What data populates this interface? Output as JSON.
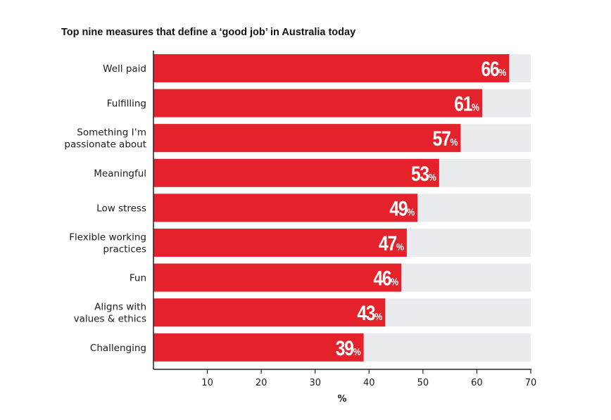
{
  "chart_data": {
    "type": "bar",
    "orientation": "horizontal",
    "title": "Top nine measures that define a ‘good job’ in Australia today",
    "xlabel": "%",
    "ylabel": "",
    "xlim": [
      0,
      70
    ],
    "xticks": [
      10,
      20,
      30,
      40,
      50,
      60,
      70
    ],
    "grid": false,
    "categories": [
      [
        "Well paid"
      ],
      [
        "Fulfilling"
      ],
      [
        "Something I’m",
        "passionate about"
      ],
      [
        "Meaningful"
      ],
      [
        "Low stress"
      ],
      [
        "Flexible working",
        "practices"
      ],
      [
        "Fun"
      ],
      [
        "Aligns with",
        "values & ethics"
      ],
      [
        "Challenging"
      ]
    ],
    "values": [
      66,
      61,
      57,
      53,
      49,
      47,
      46,
      43,
      39
    ],
    "data_labels": [
      {
        "num": "66",
        "unit": "%"
      },
      {
        "num": "61",
        "unit": "%"
      },
      {
        "num": "57",
        "unit": "%"
      },
      {
        "num": "53",
        "unit": "%"
      },
      {
        "num": "49",
        "unit": "%"
      },
      {
        "num": "47",
        "unit": "%"
      },
      {
        "num": "46",
        "unit": "%"
      },
      {
        "num": "43",
        "unit": "%"
      },
      {
        "num": "39",
        "unit": "%"
      }
    ],
    "colors": {
      "bar": "#e3222b",
      "track": "#e9ebef",
      "axis": "#222222",
      "label": "#ffffff"
    }
  }
}
